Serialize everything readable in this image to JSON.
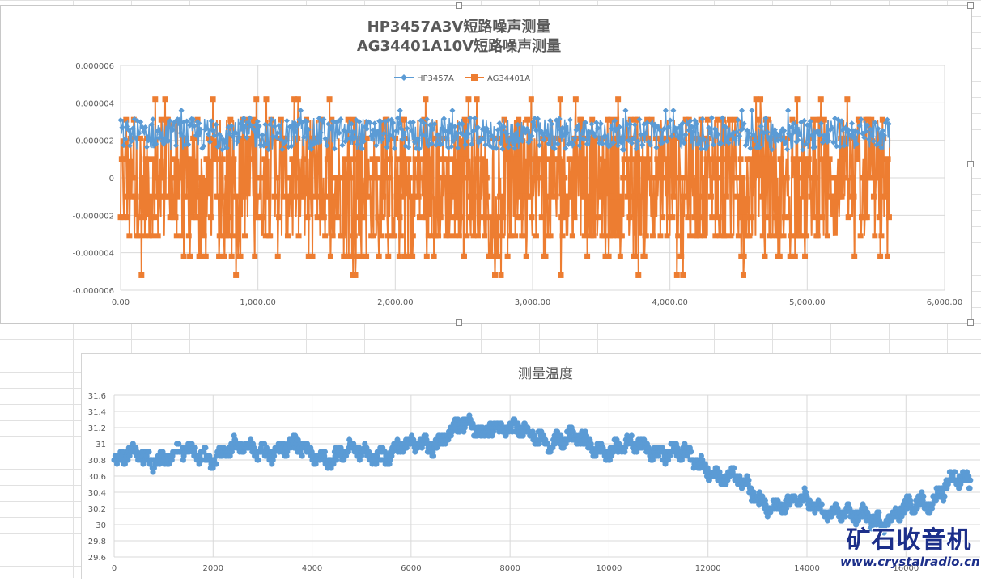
{
  "colors": {
    "series_hp": "#5b9bd5",
    "series_ag": "#ed7d31",
    "temp_points": "#5b9bd5",
    "gridline": "#d9d9d9",
    "axis_text": "#595959",
    "watermark": "#1c2f8a"
  },
  "watermark": {
    "brand": "矿石收音机",
    "url": "www.crystalradio.cn"
  },
  "chart_data": [
    {
      "type": "line",
      "title": "HP3457A3V短路噪声测量",
      "subtitle": "AG34401A10V短路噪声测量",
      "xlabel": "",
      "ylabel": "",
      "xlim": [
        0,
        6000
      ],
      "ylim": [
        -6e-06,
        6e-06
      ],
      "x_ticks": [
        "0.00",
        "1,000.00",
        "2,000.00",
        "3,000.00",
        "4,000.00",
        "5,000.00",
        "6,000.00"
      ],
      "y_ticks": [
        "-0.000006",
        "-0.000004",
        "-0.000002",
        "0",
        "0.000002",
        "0.000004",
        "0.000006"
      ],
      "grid": true,
      "legend": "top-center",
      "series": [
        {
          "name": "HP3457A",
          "marker": "diamond",
          "x_range": [
            0,
            5600
          ],
          "typical_range": [
            1.5e-06,
            3.2e-06
          ],
          "max": 3.6e-06,
          "min": 1.3e-06
        },
        {
          "name": "AG34401A",
          "marker": "square",
          "x_range": [
            0,
            5600
          ],
          "levels": [
            -5.2e-06,
            -4.2e-06,
            -3.1e-06,
            -2.1e-06,
            -1e-06,
            0,
            1e-06,
            2.1e-06,
            3.1e-06,
            4.2e-06
          ],
          "max": 4.2e-06,
          "min": -5.2e-06
        }
      ]
    },
    {
      "type": "scatter",
      "title": "测量温度",
      "xlabel": "",
      "ylabel": "",
      "xlim": [
        0,
        17500
      ],
      "ylim": [
        29.6,
        31.6
      ],
      "x_ticks": [
        "0",
        "2000",
        "4000",
        "6000",
        "8000",
        "10000",
        "12000",
        "14000",
        "16000"
      ],
      "y_ticks": [
        "29.6",
        "29.8",
        "30",
        "30.2",
        "30.4",
        "30.6",
        "30.8",
        "31",
        "31.2",
        "31.4",
        "31.6"
      ],
      "grid": true,
      "series": [
        {
          "trend_x": [
            0,
            500,
            1000,
            2000,
            3000,
            4000,
            4500,
            5500,
            6000,
            6500,
            7000,
            7500,
            7600,
            8000,
            9000,
            10000,
            11000,
            11400,
            11700,
            12500,
            13000,
            13500,
            14000,
            14500,
            15000,
            15500,
            16000,
            16500,
            16900,
            17300
          ],
          "trend_y": [
            30.75,
            30.85,
            30.85,
            30.88,
            30.95,
            30.9,
            30.85,
            30.9,
            30.95,
            31.05,
            31.2,
            31.15,
            31.3,
            31.15,
            31.05,
            30.95,
            30.95,
            30.9,
            30.75,
            30.6,
            30.3,
            30.25,
            30.25,
            30.2,
            30.05,
            30.1,
            30.15,
            30.3,
            30.6,
            30.45
          ]
        }
      ]
    }
  ]
}
